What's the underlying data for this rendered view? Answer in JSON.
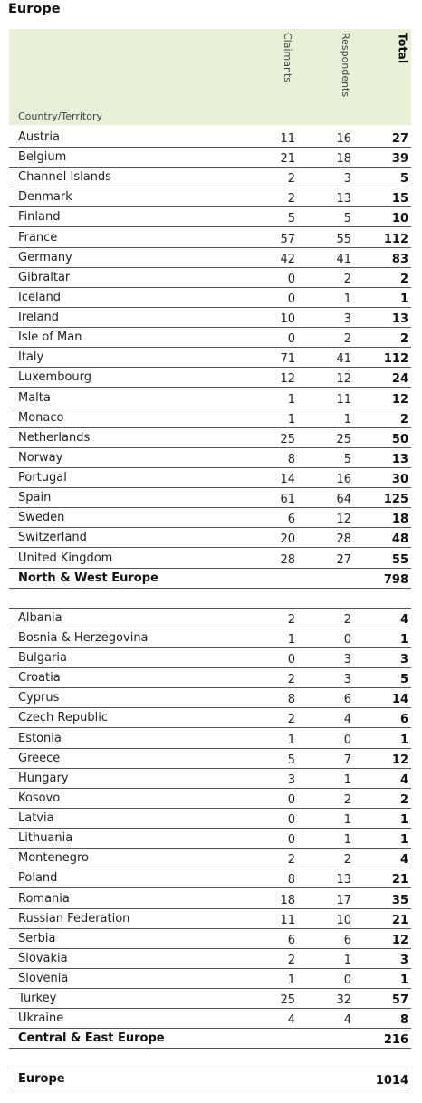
{
  "title": "Europe",
  "header": {
    "country_label": "Country/Territory",
    "claimants": "Claimants",
    "respondents": "Respondents",
    "total": "Total"
  },
  "rows": [
    {
      "name": "Austria",
      "c": "11",
      "r": "16",
      "t": "27"
    },
    {
      "name": "Belgium",
      "c": "21",
      "r": "18",
      "t": "39"
    },
    {
      "name": "Channel Islands",
      "c": "2",
      "r": "3",
      "t": "5"
    },
    {
      "name": "Denmark",
      "c": "2",
      "r": "13",
      "t": "15"
    },
    {
      "name": "Finland",
      "c": "5",
      "r": "5",
      "t": "10"
    },
    {
      "name": "France",
      "c": "57",
      "r": "55",
      "t": "112"
    },
    {
      "name": "Germany",
      "c": "42",
      "r": "41",
      "t": "83"
    },
    {
      "name": "Gibraltar",
      "c": "0",
      "r": "2",
      "t": "2"
    },
    {
      "name": "Iceland",
      "c": "0",
      "r": "1",
      "t": "1"
    },
    {
      "name": "Ireland",
      "c": "10",
      "r": "3",
      "t": "13"
    },
    {
      "name": "Isle of Man",
      "c": "0",
      "r": "2",
      "t": "2"
    },
    {
      "name": "Italy",
      "c": "71",
      "r": "41",
      "t": "112"
    },
    {
      "name": "Luxembourg",
      "c": "12",
      "r": "12",
      "t": "24"
    },
    {
      "name": "Malta",
      "c": "1",
      "r": "11",
      "t": "12"
    },
    {
      "name": "Monaco",
      "c": "1",
      "r": "1",
      "t": "2"
    },
    {
      "name": "Netherlands",
      "c": "25",
      "r": "25",
      "t": "50"
    },
    {
      "name": "Norway",
      "c": "8",
      "r": "5",
      "t": "13"
    },
    {
      "name": "Portugal",
      "c": "14",
      "r": "16",
      "t": "30"
    },
    {
      "name": "Spain",
      "c": "61",
      "r": "64",
      "t": "125"
    },
    {
      "name": "Sweden",
      "c": "6",
      "r": "12",
      "t": "18"
    },
    {
      "name": "Switzerland",
      "c": "20",
      "r": "28",
      "t": "48"
    },
    {
      "name": "United Kingdom",
      "c": "28",
      "r": "27",
      "t": "55"
    },
    {
      "name": "North & West Europe",
      "c": "",
      "r": "",
      "t": "798",
      "sub": true
    },
    {
      "blank": true
    },
    {
      "name": "Albania",
      "c": "2",
      "r": "2",
      "t": "4"
    },
    {
      "name": "Bosnia & Herzegovina",
      "c": "1",
      "r": "0",
      "t": "1"
    },
    {
      "name": "Bulgaria",
      "c": "0",
      "r": "3",
      "t": "3"
    },
    {
      "name": "Croatia",
      "c": "2",
      "r": "3",
      "t": "5"
    },
    {
      "name": "Cyprus",
      "c": "8",
      "r": "6",
      "t": "14"
    },
    {
      "name": "Czech Republic",
      "c": "2",
      "r": "4",
      "t": "6"
    },
    {
      "name": "Estonia",
      "c": "1",
      "r": "0",
      "t": "1"
    },
    {
      "name": "Greece",
      "c": "5",
      "r": "7",
      "t": "12"
    },
    {
      "name": "Hungary",
      "c": "3",
      "r": "1",
      "t": "4"
    },
    {
      "name": "Kosovo",
      "c": "0",
      "r": "2",
      "t": "2"
    },
    {
      "name": "Latvia",
      "c": "0",
      "r": "1",
      "t": "1"
    },
    {
      "name": "Lithuania",
      "c": "0",
      "r": "1",
      "t": "1"
    },
    {
      "name": "Montenegro",
      "c": "2",
      "r": "2",
      "t": "4"
    },
    {
      "name": "Poland",
      "c": "8",
      "r": "13",
      "t": "21"
    },
    {
      "name": "Romania",
      "c": "18",
      "r": "17",
      "t": "35"
    },
    {
      "name": "Russian Federation",
      "c": "11",
      "r": "10",
      "t": "21"
    },
    {
      "name": "Serbia",
      "c": "6",
      "r": "6",
      "t": "12"
    },
    {
      "name": "Slovakia",
      "c": "2",
      "r": "1",
      "t": "3"
    },
    {
      "name": "Slovenia",
      "c": "1",
      "r": "0",
      "t": "1"
    },
    {
      "name": "Turkey",
      "c": "25",
      "r": "32",
      "t": "57"
    },
    {
      "name": "Ukraine",
      "c": "4",
      "r": "4",
      "t": "8"
    },
    {
      "name": "Central & East Europe",
      "c": "",
      "r": "",
      "t": "216",
      "sub": true
    },
    {
      "blank": true
    },
    {
      "name": "Europe",
      "c": "",
      "r": "",
      "t": "1014",
      "sub": true
    }
  ],
  "colors": {
    "header_bg": "#e8f0d7",
    "rule": "#555555"
  }
}
